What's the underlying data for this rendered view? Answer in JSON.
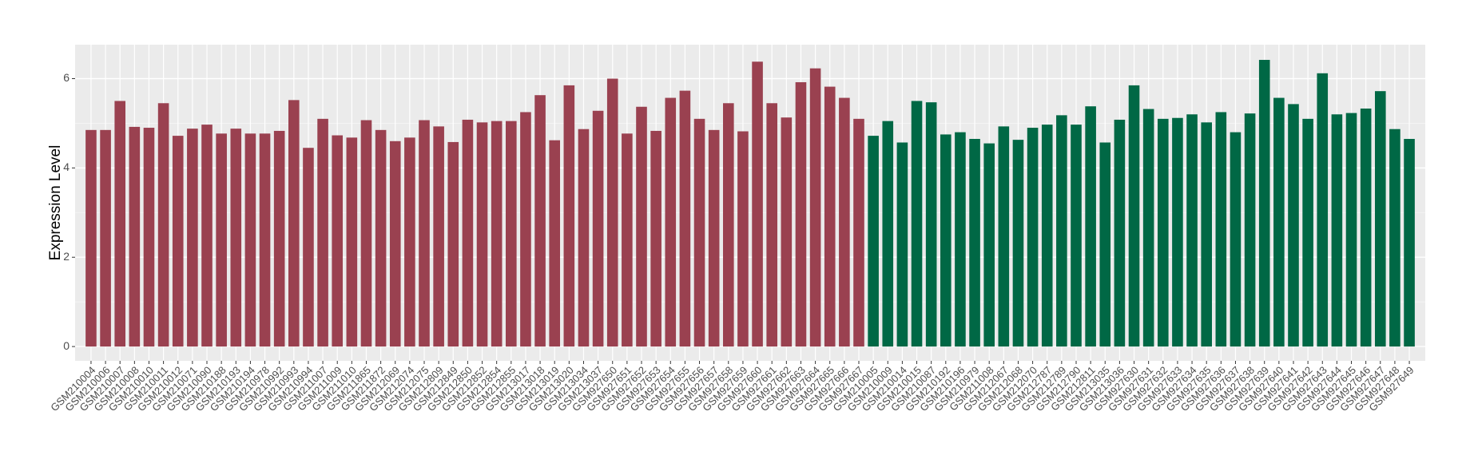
{
  "chart_data": {
    "type": "bar",
    "y_label": "Expression Level",
    "ylim": [
      -0.32,
      6.76
    ],
    "yticks": [
      0,
      2,
      4,
      6
    ],
    "grid": true,
    "series": [
      {
        "color": "#9a4150",
        "categories": [
          "GSM210004",
          "GSM210006",
          "GSM210007",
          "GSM210008",
          "GSM210010",
          "GSM210011",
          "GSM210012",
          "GSM210071",
          "GSM210090",
          "GSM210188",
          "GSM210193",
          "GSM210194",
          "GSM210978",
          "GSM210992",
          "GSM210993",
          "GSM210994",
          "GSM211007",
          "GSM211009",
          "GSM211010",
          "GSM211865",
          "GSM211872",
          "GSM212069",
          "GSM212074",
          "GSM212075",
          "GSM212809",
          "GSM212849",
          "GSM212850",
          "GSM212852",
          "GSM212854",
          "GSM212855",
          "GSM213017",
          "GSM213018",
          "GSM213019",
          "GSM213020",
          "GSM213034",
          "GSM213037",
          "GSM927650",
          "GSM927651",
          "GSM927652",
          "GSM927653",
          "GSM927654",
          "GSM927655",
          "GSM927656",
          "GSM927657",
          "GSM927658",
          "GSM927659",
          "GSM927660",
          "GSM927661",
          "GSM927662",
          "GSM927663",
          "GSM927664",
          "GSM927665",
          "GSM927666",
          "GSM927667"
        ],
        "values": [
          4.85,
          4.85,
          5.5,
          4.92,
          4.9,
          5.45,
          4.72,
          4.88,
          4.97,
          4.77,
          4.88,
          4.77,
          4.77,
          4.83,
          5.52,
          4.45,
          5.1,
          4.73,
          4.68,
          5.07,
          4.85,
          4.6,
          4.68,
          5.07,
          4.93,
          4.58,
          5.08,
          5.02,
          5.05,
          5.05,
          5.25,
          5.63,
          4.62,
          5.85,
          4.87,
          5.28,
          6.0,
          4.77,
          5.37,
          4.83,
          5.57,
          5.73,
          5.1,
          4.85,
          5.45,
          4.82,
          6.38,
          5.45,
          5.13,
          5.92,
          6.23,
          5.82,
          5.57,
          5.1
        ]
      },
      {
        "color": "#006845",
        "categories": [
          "GSM210005",
          "GSM210009",
          "GSM210014",
          "GSM210015",
          "GSM210087",
          "GSM210192",
          "GSM210196",
          "GSM210979",
          "GSM211008",
          "GSM212067",
          "GSM212068",
          "GSM212070",
          "GSM212787",
          "GSM212789",
          "GSM212790",
          "GSM212811",
          "GSM213035",
          "GSM213036",
          "GSM927630",
          "GSM927631",
          "GSM927632",
          "GSM927633",
          "GSM927634",
          "GSM927635",
          "GSM927636",
          "GSM927637",
          "GSM927638",
          "GSM927639",
          "GSM927640",
          "GSM927641",
          "GSM927642",
          "GSM927643",
          "GSM927644",
          "GSM927645",
          "GSM927646",
          "GSM927647",
          "GSM927648",
          "GSM927649"
        ],
        "values": [
          4.72,
          5.05,
          4.57,
          5.5,
          5.47,
          4.75,
          4.8,
          4.65,
          4.55,
          4.93,
          4.63,
          4.9,
          4.97,
          5.18,
          4.97,
          5.38,
          4.57,
          5.08,
          5.85,
          5.32,
          5.1,
          5.12,
          5.2,
          5.02,
          5.25,
          4.8,
          5.22,
          6.42,
          5.57,
          5.43,
          5.1,
          6.12,
          5.2,
          5.23,
          5.33,
          5.72,
          4.87,
          4.65
        ]
      }
    ]
  }
}
